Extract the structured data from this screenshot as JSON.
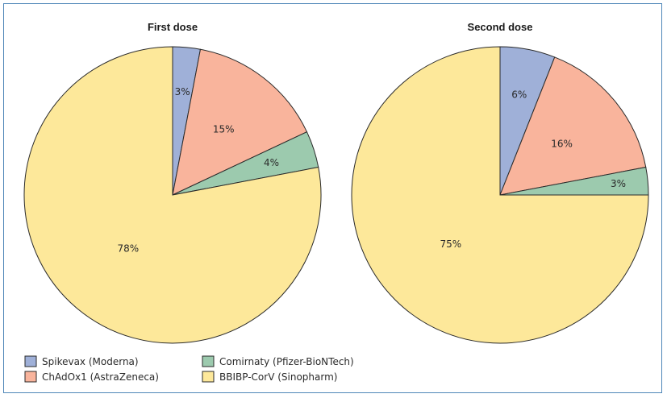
{
  "colors": {
    "frame": "#4f86b8",
    "slice_stroke": "#2a2a2a"
  },
  "chart_data": [
    {
      "type": "pie",
      "title": "First dose",
      "slices": [
        {
          "label": "Spikevax (Moderna)",
          "value": 3,
          "display": "3%",
          "color": "#9fb0d8"
        },
        {
          "label": "ChAdOx1 (AstraZeneca)",
          "value": 15,
          "display": "15%",
          "color": "#f9b49c"
        },
        {
          "label": "Comirnaty (Pfizer-BioNTech)",
          "value": 4,
          "display": "4%",
          "color": "#9ccaae"
        },
        {
          "label": "BBIBP-CorV (Sinopharm)",
          "value": 78,
          "display": "78%",
          "color": "#fde89a"
        }
      ]
    },
    {
      "type": "pie",
      "title": "Second dose",
      "slices": [
        {
          "label": "Spikevax (Moderna)",
          "value": 6,
          "display": "6%",
          "color": "#9fb0d8"
        },
        {
          "label": "ChAdOx1 (AstraZeneca)",
          "value": 16,
          "display": "16%",
          "color": "#f9b49c"
        },
        {
          "label": "Comirnaty (Pfizer-BioNTech)",
          "value": 3,
          "display": "3%",
          "color": "#9ccaae"
        },
        {
          "label": "BBIBP-CorV (Sinopharm)",
          "value": 75,
          "display": "75%",
          "color": "#fde89a"
        }
      ]
    }
  ],
  "legend": [
    {
      "label": "Spikevax (Moderna)",
      "color": "#9fb0d8"
    },
    {
      "label": "ChAdOx1 (AstraZeneca)",
      "color": "#f9b49c"
    },
    {
      "label": "Comirnaty (Pfizer-BioNTech)",
      "color": "#9ccaae"
    },
    {
      "label": "BBIBP-CorV (Sinopharm)",
      "color": "#fde89a"
    }
  ]
}
